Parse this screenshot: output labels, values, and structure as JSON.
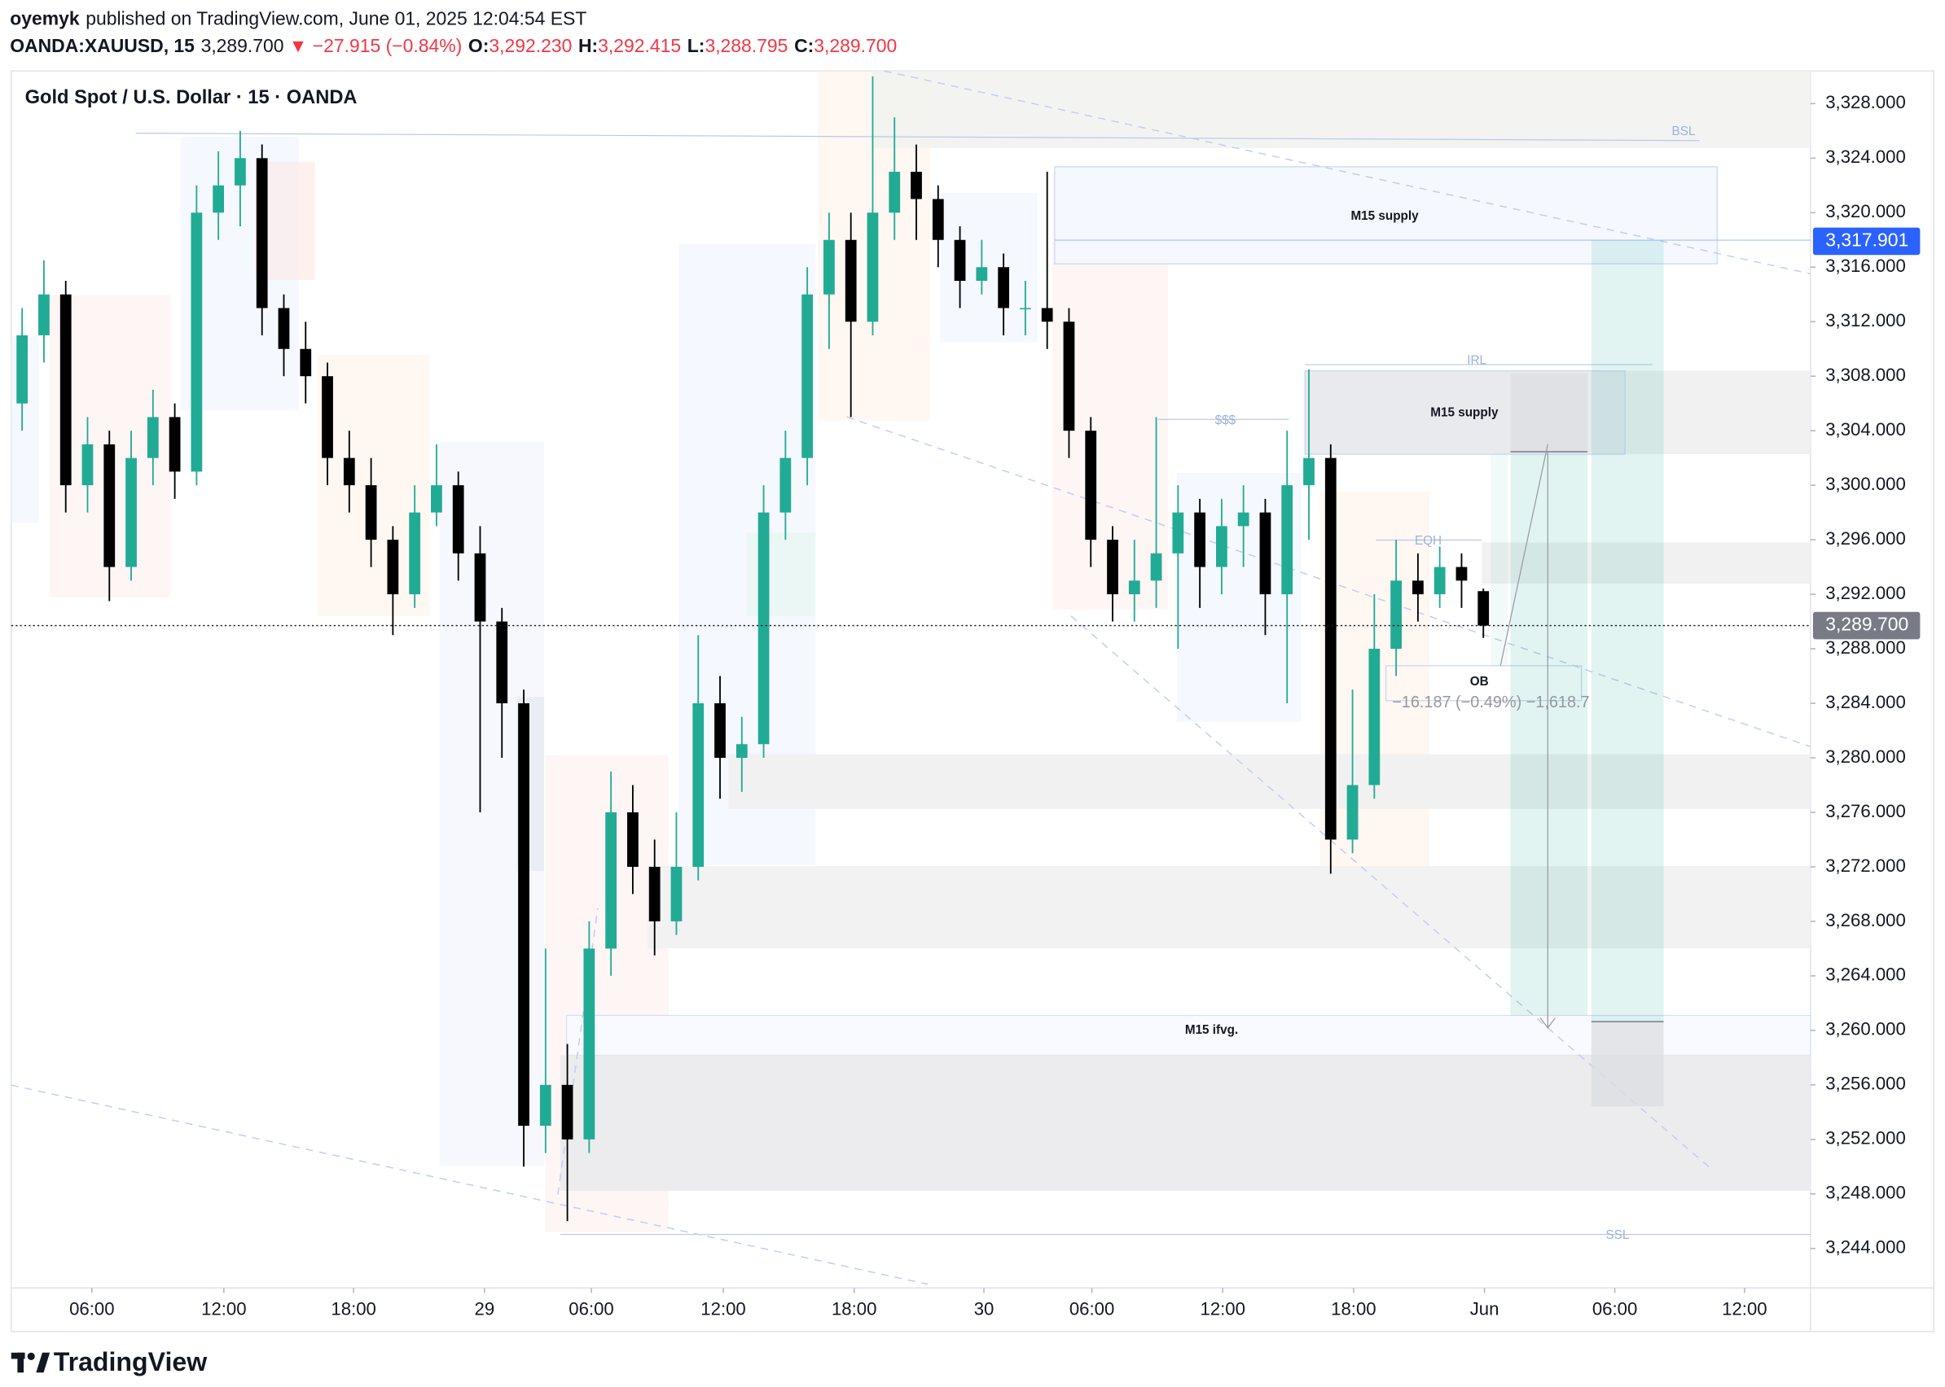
{
  "chart_data": {
    "type": "candlestick",
    "publisher": "oyemyk",
    "published": "published on TradingView.com, June 01, 2025 12:04:54 EST",
    "symbol": "OANDA:XAUUSD, 15",
    "last": "3,289.700",
    "change": "▼ −27.915 (−0.84%)",
    "ohlc_header": [
      {
        "label": "O:",
        "value": "3,292.230"
      },
      {
        "label": "H:",
        "value": "3,292.415"
      },
      {
        "label": "L:",
        "value": "3,288.795"
      },
      {
        "label": "C:",
        "value": "3,289.700"
      }
    ],
    "title": "Gold Spot / U.S. Dollar · 15 · OANDA",
    "brand": "TradingView",
    "up_color": "#22ab94",
    "down_color": "#000000",
    "xlim": [
      0,
      330
    ],
    "ylim": [
      3241.1,
      3330.4
    ],
    "xticks": [
      {
        "value": 14.8,
        "label": "06:00"
      },
      {
        "value": 39.0,
        "label": "12:00"
      },
      {
        "value": 62.8,
        "label": "18:00"
      },
      {
        "value": 86.8,
        "label": "29"
      },
      {
        "value": 106.4,
        "label": "06:00"
      },
      {
        "value": 130.6,
        "label": "12:00"
      },
      {
        "value": 154.6,
        "label": "18:00"
      },
      {
        "value": 178.4,
        "label": "30"
      },
      {
        "value": 198.2,
        "label": "06:00"
      },
      {
        "value": 222.2,
        "label": "12:00"
      },
      {
        "value": 246.2,
        "label": "18:00"
      },
      {
        "value": 270.2,
        "label": "Jun"
      },
      {
        "value": 294.1,
        "label": "06:00"
      },
      {
        "value": 317.9,
        "label": "12:00"
      }
    ],
    "yticks": [
      {
        "value": 3244,
        "label": "3,244.000"
      },
      {
        "value": 3248,
        "label": "3,248.000"
      },
      {
        "value": 3252,
        "label": "3,252.000"
      },
      {
        "value": 3256,
        "label": "3,256.000"
      },
      {
        "value": 3260,
        "label": "3,260.000"
      },
      {
        "value": 3264,
        "label": "3,264.000"
      },
      {
        "value": 3268,
        "label": "3,268.000"
      },
      {
        "value": 3272,
        "label": "3,272.000"
      },
      {
        "value": 3276,
        "label": "3,276.000"
      },
      {
        "value": 3280,
        "label": "3,280.000"
      },
      {
        "value": 3284,
        "label": "3,284.000"
      },
      {
        "value": 3288,
        "label": "3,288.000"
      },
      {
        "value": 3292,
        "label": "3,292.000"
      },
      {
        "value": 3296,
        "label": "3,296.000"
      },
      {
        "value": 3300,
        "label": "3,300.000"
      },
      {
        "value": 3304,
        "label": "3,304.000"
      },
      {
        "value": 3308,
        "label": "3,308.000"
      },
      {
        "value": 3312,
        "label": "3,312.000"
      },
      {
        "value": 3316,
        "label": "3,316.000"
      },
      {
        "value": 3320,
        "label": "3,320.000"
      },
      {
        "value": 3324,
        "label": "3,324.000"
      },
      {
        "value": 3328,
        "label": "3,328.000"
      }
    ],
    "price_labels": [
      {
        "value": 3317.901,
        "label": "3,317.901",
        "color": "#2962ff"
      },
      {
        "value": 3289.7,
        "label": "3,289.700",
        "color": "#787b86"
      }
    ],
    "annotations": [
      "BSL",
      "M15 supply",
      "IRL",
      "$$$",
      "M15 supply",
      "EQH",
      "OB",
      "−16.187 (−0.49%) −1,618.7",
      "M15 ifvg.",
      "SSL"
    ],
    "x": [
      2,
      6,
      10,
      14,
      18,
      22,
      26,
      30,
      34,
      38,
      42,
      46,
      50,
      54,
      58,
      62,
      66,
      70,
      74,
      78,
      82,
      86,
      90,
      94,
      98,
      102,
      106,
      110,
      114,
      118,
      122,
      126,
      130,
      134,
      138,
      142,
      146,
      150,
      154,
      158,
      162,
      166,
      170,
      174,
      178,
      182,
      186,
      190,
      194,
      198,
      202,
      206,
      210,
      214,
      218,
      222,
      226,
      230,
      234,
      238,
      242,
      246,
      250,
      254,
      258,
      262,
      266,
      270
    ],
    "open": [
      3306,
      3311,
      3314,
      3300,
      3303,
      3294,
      3302,
      3305,
      3301,
      3320,
      3322,
      3324,
      3313,
      3310,
      3308,
      3302,
      3300,
      3296,
      3292,
      3298,
      3300,
      3295,
      3290,
      3284,
      3253,
      3256,
      3252,
      3266,
      3276,
      3272,
      3268,
      3272,
      3284,
      3280,
      3281,
      3298,
      3302,
      3314,
      3318,
      3312,
      3320,
      3323,
      3321,
      3318,
      3315,
      3316,
      3313,
      3313,
      3312,
      3304,
      3296,
      3292,
      3293,
      3295,
      3298,
      3294,
      3297,
      3298,
      3292,
      3300,
      3302,
      3274,
      3278,
      3288,
      3293,
      3292,
      3294,
      3292.23
    ],
    "high": [
      3313,
      3316.5,
      3315,
      3305,
      3304,
      3304,
      3307,
      3306,
      3322,
      3324.5,
      3326,
      3325,
      3314,
      3312,
      3309,
      3304,
      3302,
      3297,
      3300,
      3303,
      3301,
      3297,
      3291,
      3285,
      3266,
      3259,
      3268,
      3279,
      3278,
      3274,
      3276,
      3289,
      3286,
      3283,
      3300,
      3304,
      3316,
      3320,
      3320,
      3330,
      3327,
      3325,
      3322,
      3319,
      3318,
      3317,
      3315,
      3323,
      3313,
      3305,
      3297,
      3296,
      3305,
      3300,
      3299,
      3299,
      3300,
      3299,
      3304,
      3308.5,
      3303,
      3285,
      3292,
      3296,
      3295,
      3295.5,
      3295,
      3292.415
    ],
    "low": [
      3304,
      3309,
      3298,
      3298,
      3291.5,
      3293,
      3300,
      3299,
      3300,
      3318,
      3319,
      3311,
      3308,
      3306,
      3300,
      3298,
      3294,
      3289,
      3291,
      3297,
      3293,
      3276,
      3280,
      3250,
      3251,
      3246,
      3251,
      3264,
      3270,
      3265.5,
      3267,
      3271,
      3277,
      3277.5,
      3280,
      3296,
      3300,
      3310,
      3305,
      3311,
      3318,
      3318,
      3316,
      3313,
      3314,
      3311,
      3311,
      3310,
      3302,
      3294,
      3290,
      3290,
      3291,
      3288,
      3291,
      3292,
      3294,
      3289,
      3284,
      3296,
      3271.5,
      3273,
      3277,
      3286,
      3290,
      3291,
      3291,
      3288.795
    ],
    "close": [
      3311,
      3314,
      3300,
      3303,
      3294,
      3302,
      3305,
      3301,
      3320,
      3322,
      3324,
      3313,
      3310,
      3308,
      3302,
      3300,
      3296,
      3292,
      3298,
      3300,
      3295,
      3290,
      3284,
      3253,
      3256,
      3252,
      3266,
      3276,
      3272,
      3268,
      3272,
      3284,
      3280,
      3281,
      3298,
      3302,
      3314,
      3318,
      3312,
      3320,
      3323,
      3321,
      3318,
      3315,
      3316,
      3313,
      3313,
      3312,
      3304,
      3296,
      3292,
      3293,
      3295,
      3298,
      3294,
      3297,
      3298,
      3292,
      3300,
      3302,
      3274,
      3278,
      3288,
      3293,
      3292,
      3294,
      3293,
      3289.7
    ]
  }
}
